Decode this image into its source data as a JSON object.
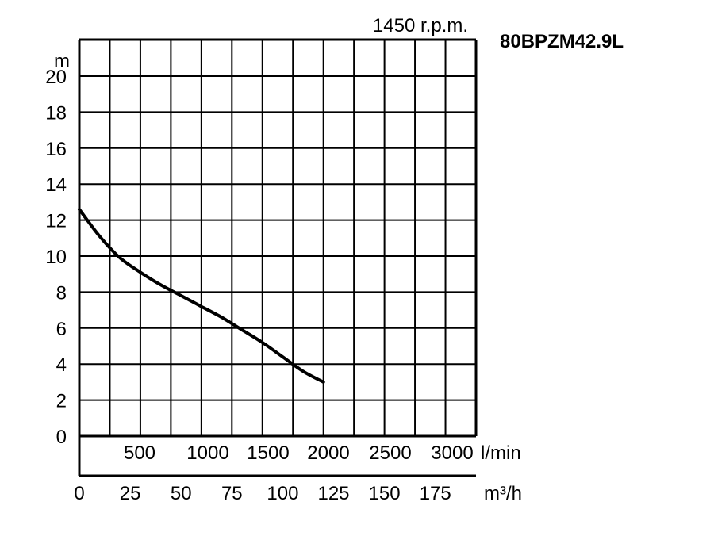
{
  "chart_data": {
    "type": "line",
    "title": "80BPZM42.9L",
    "subtitle": "1450 r.p.m.",
    "ylabel": "m",
    "xlabel_flow_lmin": "l/min",
    "xlabel_flow_m3h": "m³/h",
    "ylim": [
      0,
      20
    ],
    "y_ticks": [
      "0",
      "2",
      "4",
      "6",
      "8",
      "10",
      "12",
      "14",
      "16",
      "18",
      "20"
    ],
    "lmin_ticks": [
      "500",
      "1000",
      "1500",
      "2000",
      "2500",
      "3000"
    ],
    "m3h_ticks": [
      "0",
      "25",
      "50",
      "75",
      "100",
      "125",
      "150",
      "175"
    ],
    "xlim_m3h": [
      0,
      195
    ],
    "grid": true,
    "series": [
      {
        "x": [
          0,
          10,
          20,
          30,
          40,
          50,
          60,
          70,
          80,
          90,
          100,
          110,
          120
        ],
        "y": [
          12.6,
          11.1,
          9.9,
          9.1,
          8.4,
          7.8,
          7.2,
          6.6,
          5.9,
          5.2,
          4.4,
          3.6,
          3.0
        ]
      }
    ]
  }
}
